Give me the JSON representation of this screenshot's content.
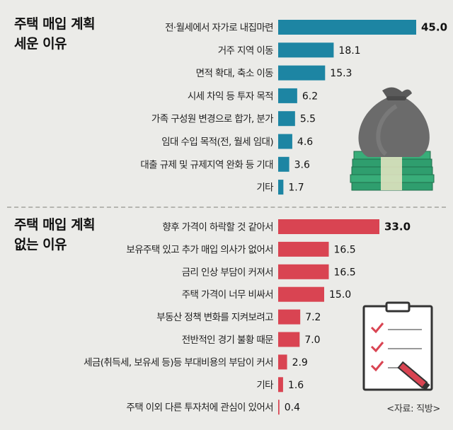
{
  "sections": [
    {
      "title_lines": [
        "주택 매입 계획",
        "세운 이유"
      ],
      "color": "#1d85a3",
      "rows": [
        {
          "label": "전·월세에서 자가로 내집마련",
          "value": 45.0,
          "text": "45.0",
          "bold": true
        },
        {
          "label": "거주 지역 이동",
          "value": 18.1,
          "text": "18.1",
          "bold": false
        },
        {
          "label": "면적 확대, 축소 이동",
          "value": 15.3,
          "text": "15.3",
          "bold": false
        },
        {
          "label": "시세 차익 등 투자 목적",
          "value": 6.2,
          "text": "6.2",
          "bold": false
        },
        {
          "label": "가족 구성원 변경으로 합가, 분가",
          "value": 5.5,
          "text": "5.5",
          "bold": false
        },
        {
          "label": "임대 수입 목적(전, 월세 임대)",
          "value": 4.6,
          "text": "4.6",
          "bold": false
        },
        {
          "label": "대출 규제 및 규제지역 완화 등 기대",
          "value": 3.6,
          "text": "3.6",
          "bold": false
        },
        {
          "label": "기타",
          "value": 1.7,
          "text": "1.7",
          "bold": false
        }
      ]
    },
    {
      "title_lines": [
        "주택 매입 계획",
        "없는 이유"
      ],
      "color": "#d94452",
      "rows": [
        {
          "label": "향후 가격이 하락할 것 같아서",
          "value": 33.0,
          "text": "33.0",
          "bold": true
        },
        {
          "label": "보유주택 있고 추가 매입 의사가 없어서",
          "value": 16.5,
          "text": "16.5",
          "bold": false
        },
        {
          "label": "금리 인상 부담이 커져서",
          "value": 16.5,
          "text": "16.5",
          "bold": false
        },
        {
          "label": "주택 가격이 너무 비싸서",
          "value": 15.0,
          "text": "15.0",
          "bold": false
        },
        {
          "label": "부동산 정책 변화를 지켜보려고",
          "value": 7.2,
          "text": "7.2",
          "bold": false
        },
        {
          "label": "전반적인 경기 불황 때문",
          "value": 7.0,
          "text": "7.0",
          "bold": false
        },
        {
          "label": "세금(취득세, 보유세 등)등 부대비용의 부담이 커서",
          "value": 2.9,
          "text": "2.9",
          "bold": false
        },
        {
          "label": "기타",
          "value": 1.6,
          "text": "1.6",
          "bold": false
        },
        {
          "label": "주택 이외 다른 투자처에 관심이 있어서",
          "value": 0.4,
          "text": "0.4",
          "bold": false
        }
      ]
    }
  ],
  "source": "<자료: 직방>",
  "chart_data": [
    {
      "type": "bar",
      "title": "주택 매입 계획 세운 이유",
      "orientation": "horizontal",
      "categories": [
        "전·월세에서 자가로 내집마련",
        "거주 지역 이동",
        "면적 확대, 축소 이동",
        "시세 차익 등 투자 목적",
        "가족 구성원 변경으로 합가, 분가",
        "임대 수입 목적(전, 월세 임대)",
        "대출 규제 및 규제지역 완화 등 기대",
        "기타"
      ],
      "values": [
        45.0,
        18.1,
        15.3,
        6.2,
        5.5,
        4.6,
        3.6,
        1.7
      ],
      "color": "#1d85a3"
    },
    {
      "type": "bar",
      "title": "주택 매입 계획 없는 이유",
      "orientation": "horizontal",
      "categories": [
        "향후 가격이 하락할 것 같아서",
        "보유주택 있고 추가 매입 의사가 없어서",
        "금리 인상 부담이 커져서",
        "주택 가격이 너무 비싸서",
        "부동산 정책 변화를 지켜보려고",
        "전반적인 경기 불황 때문",
        "세금(취득세, 보유세 등)등 부대비용의 부담이 커서",
        "기타",
        "주택 이외 다른 투자처에 관심이 있어서"
      ],
      "values": [
        33.0,
        16.5,
        16.5,
        15.0,
        7.2,
        7.0,
        2.9,
        1.6,
        0.4
      ],
      "color": "#d94452"
    }
  ],
  "icons": [
    "money-bag-icon",
    "checklist-clipboard-icon"
  ]
}
